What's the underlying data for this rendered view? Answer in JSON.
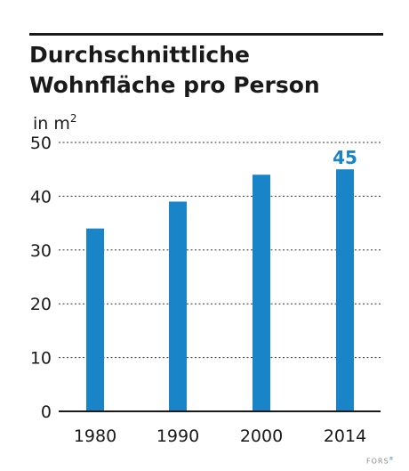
{
  "title": "Durchschnittliche Wohnfläche pro Person",
  "unit_prefix": "in m",
  "unit_power": "2",
  "source_label": "FORS",
  "source_mark": "®",
  "colors": {
    "bar": "#1a84c9",
    "text": "#1a1a1a",
    "grid": "#333333",
    "highlight": "#1a84c9"
  },
  "chart_data": {
    "type": "bar",
    "categories": [
      "1980",
      "1990",
      "2000",
      "2014"
    ],
    "values": [
      34,
      39,
      44,
      45
    ],
    "ylim": [
      0,
      50
    ],
    "yticks": [
      0,
      10,
      20,
      30,
      40,
      50
    ],
    "data_labels": [
      {
        "category": "2014",
        "text": "45"
      }
    ],
    "grid": true
  }
}
